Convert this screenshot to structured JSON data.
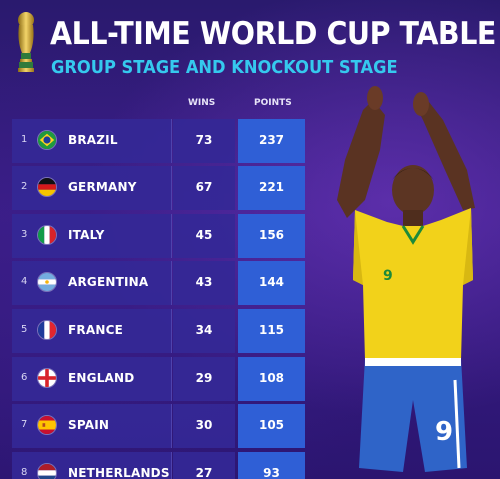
{
  "header": {
    "title": "ALL-TIME WORLD CUP TABLE",
    "subtitle": "GROUP STAGE AND KNOCKOUT STAGE"
  },
  "columns": {
    "wins": "WINS",
    "points": "POINTS"
  },
  "rows": [
    {
      "rank": "1",
      "country": "BRAZIL",
      "wins": "73",
      "points": "237",
      "flag_icon": "brazil-flag-icon"
    },
    {
      "rank": "2",
      "country": "GERMANY",
      "wins": "67",
      "points": "221",
      "flag_icon": "germany-flag-icon"
    },
    {
      "rank": "3",
      "country": "ITALY",
      "wins": "45",
      "points": "156",
      "flag_icon": "italy-flag-icon"
    },
    {
      "rank": "4",
      "country": "ARGENTINA",
      "wins": "43",
      "points": "144",
      "flag_icon": "argentina-flag-icon"
    },
    {
      "rank": "5",
      "country": "FRANCE",
      "wins": "34",
      "points": "115",
      "flag_icon": "france-flag-icon"
    },
    {
      "rank": "6",
      "country": "ENGLAND",
      "wins": "29",
      "points": "108",
      "flag_icon": "england-flag-icon"
    },
    {
      "rank": "7",
      "country": "SPAIN",
      "wins": "30",
      "points": "105",
      "flag_icon": "spain-flag-icon"
    },
    {
      "rank": "8",
      "country": "NETHERLANDS",
      "wins": "27",
      "points": "93",
      "flag_icon": "netherlands-flag-icon"
    }
  ],
  "colors": {
    "background": "#3a1d86",
    "row": "#3428a0",
    "points_cell": "#2f5fd6",
    "subtitle": "#35c9ee"
  },
  "player": {
    "shirt_number": "9"
  }
}
